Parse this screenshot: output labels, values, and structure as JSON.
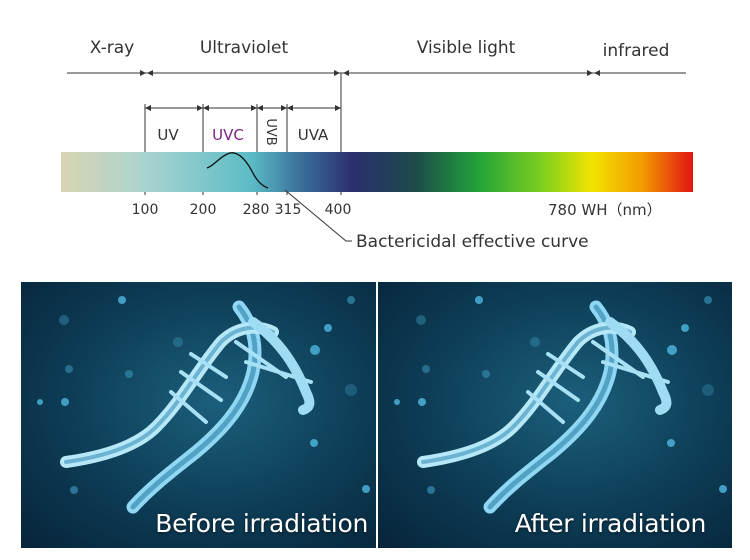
{
  "spectrum": {
    "regions": {
      "xray": "X-ray",
      "ultraviolet": "Ultraviolet",
      "visible": "Visible light",
      "infrared": "infrared"
    },
    "uv_bands": {
      "uv": "UV",
      "uvc": "UVC",
      "uvb": "UVB",
      "uva": "UVA"
    },
    "ticks": [
      "100",
      "200",
      "280",
      "315",
      "400"
    ],
    "end_label": "780 WH（nm）",
    "curve_label": "Bactericidal effective curve",
    "colors": {
      "uvc_text": "#7b1f7e",
      "gradient": [
        "#d9d5b4",
        "#9fd1cf",
        "#53b8c4",
        "#2b2f6e",
        "#1f4b4a",
        "#23a33a",
        "#7ccf1e",
        "#f2e400",
        "#f29a00",
        "#e31313"
      ]
    }
  },
  "panels": [
    {
      "caption": "Before irradiation"
    },
    {
      "caption": "After irradiation"
    }
  ]
}
